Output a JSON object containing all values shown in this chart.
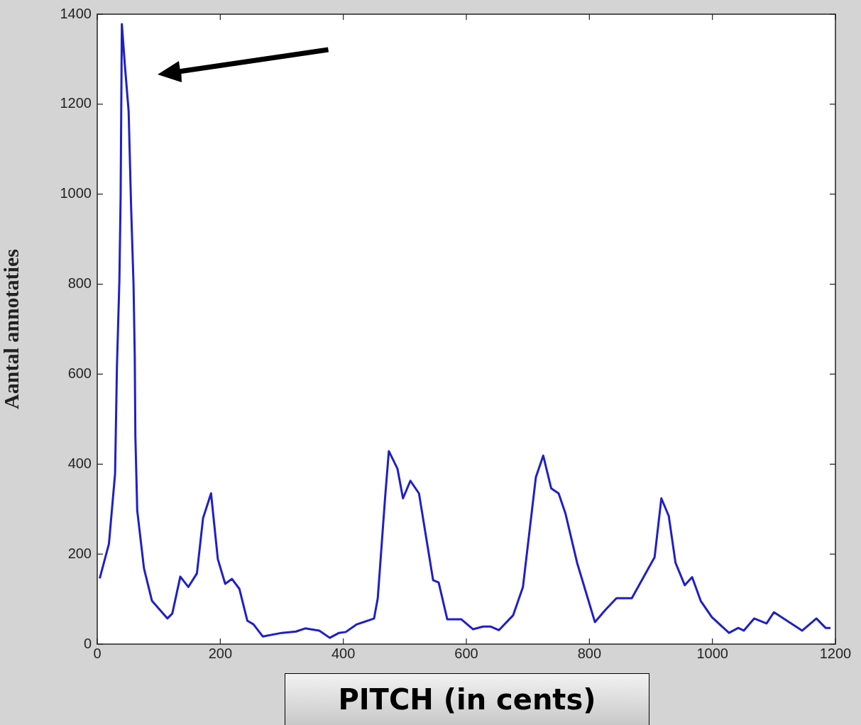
{
  "chart_data": {
    "type": "line",
    "xlabel": "PITCH (in cents)",
    "ylabel": "Aantal annotaties",
    "xlim": [
      0,
      1200
    ],
    "xticks": [
      0,
      200,
      400,
      600,
      800,
      1000,
      1200
    ],
    "ylim": [
      0,
      1400
    ],
    "yticks": [
      0,
      200,
      400,
      600,
      800,
      1000,
      1200,
      1400
    ],
    "grid": false,
    "legend": false,
    "marker": "none",
    "line_style": "solid",
    "series": [
      {
        "color": "#1f1fc8",
        "x": [
          4,
          19,
          29,
          32,
          36,
          38,
          40,
          45,
          51,
          55,
          59,
          61,
          62,
          65,
          76,
          89,
          114,
          122,
          135,
          148,
          162,
          172,
          185,
          196,
          208,
          219,
          231,
          244,
          254,
          269,
          300,
          323,
          338,
          361,
          378,
          393,
          404,
          422,
          450,
          456,
          468,
          474,
          488,
          497,
          509,
          523,
          546,
          555,
          569,
          592,
          611,
          627,
          640,
          653,
          676,
          692,
          713,
          725,
          738,
          750,
          761,
          780,
          809,
          826,
          844,
          869,
          906,
          917,
          929,
          940,
          955,
          967,
          981,
          999,
          1027,
          1042,
          1051,
          1068,
          1088,
          1100,
          1146,
          1169,
          1184,
          1192
        ],
        "values": [
          146,
          223,
          379,
          616,
          809,
          993,
          1378,
          1285,
          1185,
          974,
          799,
          636,
          461,
          297,
          168,
          96,
          57,
          68,
          150,
          127,
          157,
          280,
          335,
          189,
          134,
          145,
          123,
          52,
          44,
          17,
          25,
          28,
          35,
          30,
          14,
          25,
          27,
          44,
          57,
          102,
          327,
          429,
          390,
          324,
          363,
          335,
          142,
          137,
          55,
          55,
          33,
          39,
          39,
          31,
          64,
          127,
          371,
          419,
          346,
          335,
          291,
          181,
          49,
          76,
          102,
          102,
          193,
          324,
          285,
          181,
          131,
          149,
          96,
          60,
          25,
          36,
          30,
          57,
          46,
          71,
          30,
          57,
          36,
          36
        ]
      }
    ]
  }
}
